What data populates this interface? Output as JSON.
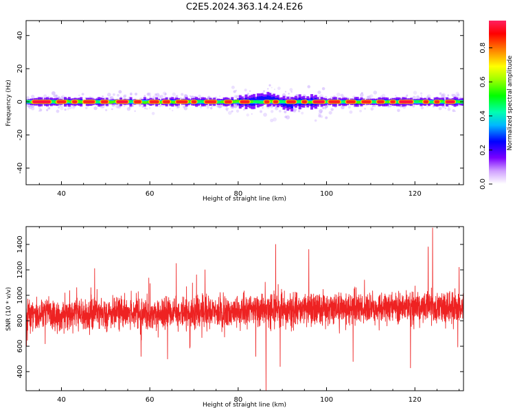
{
  "title": "C2E5.2024.363.14.24.E26",
  "chart_data": [
    {
      "type": "heatmap",
      "xlabel": "Height of straight line (km)",
      "ylabel": "Frequency (Hz)",
      "xlim": [
        32,
        131
      ],
      "ylim": [
        -50,
        49
      ],
      "xticks": [
        40,
        60,
        80,
        100,
        120
      ],
      "yticks": [
        -40,
        -20,
        0,
        20,
        40
      ],
      "colorbar": {
        "label": "Normalized spectral amplitude",
        "ticks": [
          0.0,
          0.2,
          0.4,
          0.6,
          0.8
        ],
        "range": [
          0,
          0.96
        ]
      },
      "band_center_hz": 0,
      "segments": [
        {
          "x0": 33.5,
          "x1": 37.5,
          "amp": 0.85
        },
        {
          "x0": 39,
          "x1": 41,
          "amp": 0.8
        },
        {
          "x0": 42.5,
          "x1": 43.5,
          "amp": 0.82
        },
        {
          "x0": 45,
          "x1": 47.5,
          "amp": 0.83
        },
        {
          "x0": 49,
          "x1": 50.5,
          "amp": 0.82
        },
        {
          "x0": 52.5,
          "x1": 55,
          "amp": 0.85
        },
        {
          "x0": 56.5,
          "x1": 58,
          "amp": 0.84
        },
        {
          "x0": 60,
          "x1": 62,
          "amp": 0.82
        },
        {
          "x0": 63,
          "x1": 64.5,
          "amp": 0.84
        },
        {
          "x0": 66,
          "x1": 68.5,
          "amp": 0.84
        },
        {
          "x0": 69.5,
          "x1": 70.5,
          "amp": 0.8
        },
        {
          "x0": 72.5,
          "x1": 75,
          "amp": 0.83
        },
        {
          "x0": 77,
          "x1": 78.5,
          "amp": 0.84
        },
        {
          "x0": 80.5,
          "x1": 82.5,
          "amp": 0.8
        },
        {
          "x0": 86,
          "x1": 87,
          "amp": 0.82
        },
        {
          "x0": 88,
          "x1": 89,
          "amp": 0.84
        },
        {
          "x0": 91,
          "x1": 93,
          "amp": 0.82
        },
        {
          "x0": 94.5,
          "x1": 95.5,
          "amp": 0.84
        },
        {
          "x0": 97,
          "x1": 99.5,
          "amp": 0.85
        },
        {
          "x0": 100.5,
          "x1": 103,
          "amp": 0.84
        },
        {
          "x0": 104.5,
          "x1": 106.5,
          "amp": 0.84
        },
        {
          "x0": 108,
          "x1": 110,
          "amp": 0.84
        },
        {
          "x0": 111.5,
          "x1": 113,
          "amp": 0.83
        },
        {
          "x0": 114.5,
          "x1": 115.5,
          "amp": 0.82
        },
        {
          "x0": 116.5,
          "x1": 119.5,
          "amp": 0.86
        },
        {
          "x0": 122,
          "x1": 123,
          "amp": 0.84
        },
        {
          "x0": 124.5,
          "x1": 125.5,
          "amp": 0.82
        },
        {
          "x0": 127,
          "x1": 129,
          "amp": 0.86
        }
      ]
    },
    {
      "type": "line",
      "xlabel": "Height of straight line (km)",
      "ylabel": "SNR (10 * v/v)",
      "xlim": [
        32,
        131
      ],
      "ylim": [
        250,
        1540
      ],
      "xticks": [
        40,
        60,
        80,
        100,
        120
      ],
      "yticks": [
        400,
        600,
        800,
        1000,
        1200,
        1400
      ],
      "series": [
        {
          "color": "#ee2222",
          "mean": [
            [
              32,
              850
            ],
            [
              60,
              860
            ],
            [
              80,
              880
            ],
            [
              100,
              895
            ],
            [
              131,
              910
            ]
          ],
          "noise_amplitude": 95,
          "spikes": [
            {
              "x": 124,
              "y": 1530
            },
            {
              "x": 86.3,
              "y": 250
            },
            {
              "x": 66,
              "y": 1250
            },
            {
              "x": 88.5,
              "y": 1400
            },
            {
              "x": 96,
              "y": 1360
            },
            {
              "x": 123,
              "y": 1380
            },
            {
              "x": 47.5,
              "y": 1210
            },
            {
              "x": 58,
              "y": 520
            },
            {
              "x": 106,
              "y": 480
            },
            {
              "x": 119,
              "y": 430
            },
            {
              "x": 89.5,
              "y": 440
            },
            {
              "x": 72.5,
              "y": 1200
            },
            {
              "x": 130,
              "y": 1220
            },
            {
              "x": 64,
              "y": 500
            },
            {
              "x": 84,
              "y": 520
            }
          ]
        }
      ]
    }
  ]
}
